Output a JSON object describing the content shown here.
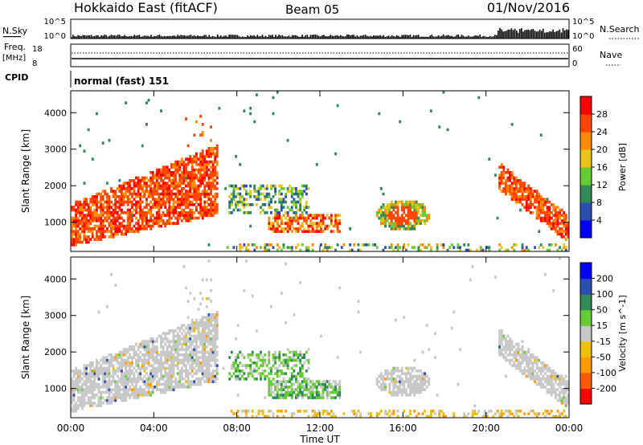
{
  "header": {
    "title": "Hokkaido East (fitACF)",
    "beam": "Beam 05",
    "date": "01/Nov/2016"
  },
  "top_strips": {
    "nsky": {
      "label": "N.Sky",
      "ticks": [
        "10^5",
        "10^0"
      ],
      "right_ticks": [
        "10^5",
        "10^0"
      ],
      "right_label": "N.Search"
    },
    "freq": {
      "label": "Freq.",
      "unit": "[MHz]",
      "ticks": [
        "18",
        "8"
      ],
      "right_ticks": [
        "60",
        "0"
      ],
      "right_label": "Nave"
    },
    "cpid": {
      "label": "CPID",
      "value": "normal (fast) 151"
    }
  },
  "chart_data": [
    {
      "type": "heatmap",
      "name": "power",
      "ylabel": "Slant Range [km]",
      "ylim": [
        200,
        4600
      ],
      "yticks": [
        1000,
        2000,
        3000,
        4000
      ],
      "xlim": [
        0,
        24
      ],
      "colorbar": {
        "label": "Power [dB]",
        "ticks": [
          "4",
          "8",
          "12",
          "16",
          "20",
          "24",
          "28"
        ],
        "colors": [
          "#0000ff",
          "#2b4fb0",
          "#2e8b57",
          "#66cc33",
          "#e6c619",
          "#ff8c00",
          "#ff4500",
          "#ff0000"
        ]
      }
    },
    {
      "type": "heatmap",
      "name": "velocity",
      "ylabel": "Slant Range [km]",
      "ylim": [
        200,
        4600
      ],
      "yticks": [
        1000,
        2000,
        3000,
        4000
      ],
      "xlim": [
        0,
        24
      ],
      "colorbar": {
        "label": "Velocity [m s^-1]",
        "ticks": [
          "-200",
          "-100",
          "-50",
          "-15",
          "15",
          "50",
          "100",
          "200"
        ],
        "colors": [
          "#ff0000",
          "#ff5a00",
          "#ff9a00",
          "#f0c000",
          "#c8c8c8",
          "#66cc33",
          "#2e8b57",
          "#2b4fb0",
          "#0000ff"
        ]
      }
    }
  ],
  "xaxis": {
    "ticks": [
      "00:00",
      "04:00",
      "08:00",
      "12:00",
      "16:00",
      "20:00",
      "00:00"
    ],
    "label": "Time UT"
  }
}
